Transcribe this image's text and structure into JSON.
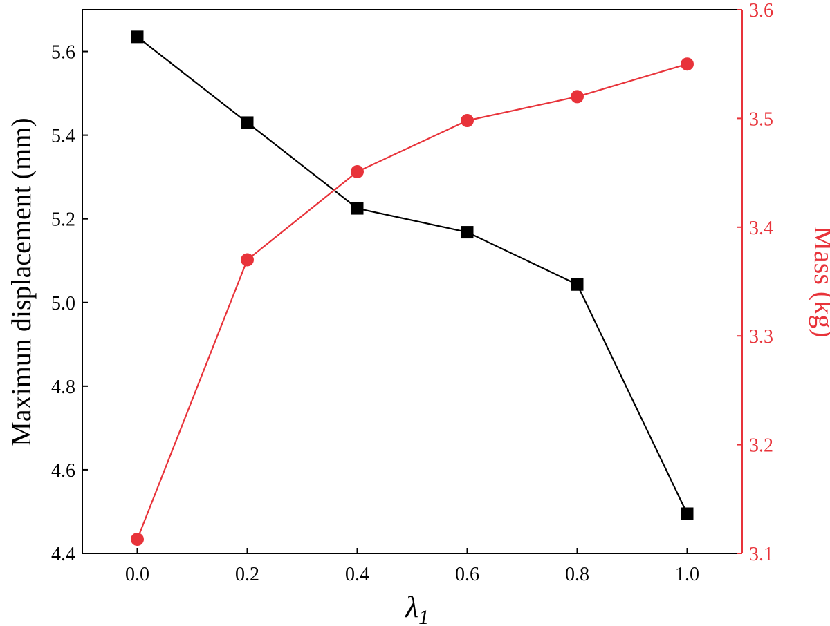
{
  "chart_data": {
    "type": "line",
    "x": [
      0.0,
      0.2,
      0.4,
      0.6,
      0.8,
      1.0
    ],
    "x_ticks": [
      "0.0",
      "0.2",
      "0.4",
      "0.6",
      "0.8",
      "1.0"
    ],
    "xlim": [
      -0.1,
      1.1
    ],
    "xlabel": {
      "main": "λ",
      "sub": "1"
    },
    "left_axis": {
      "label": "Maximun displacement (mm)",
      "ylim": [
        4.4,
        5.7
      ],
      "ticks": [
        "4.4",
        "4.6",
        "4.8",
        "5.0",
        "5.2",
        "5.4",
        "5.6"
      ],
      "color": "#000000"
    },
    "right_axis": {
      "label": "Mass (kg)",
      "ylim": [
        3.1,
        3.6
      ],
      "ticks": [
        "3.1",
        "3.2",
        "3.3",
        "3.4",
        "3.5",
        "3.6"
      ],
      "color": "#e8333a"
    },
    "series": [
      {
        "axis": "left",
        "marker": "square",
        "color": "#000000",
        "values": [
          5.635,
          5.43,
          5.225,
          5.168,
          5.043,
          4.495
        ]
      },
      {
        "axis": "right",
        "marker": "circle",
        "color": "#e8333a",
        "values": [
          3.113,
          3.37,
          3.451,
          3.498,
          3.52,
          3.55
        ]
      }
    ],
    "grid": false,
    "legend": "none"
  }
}
